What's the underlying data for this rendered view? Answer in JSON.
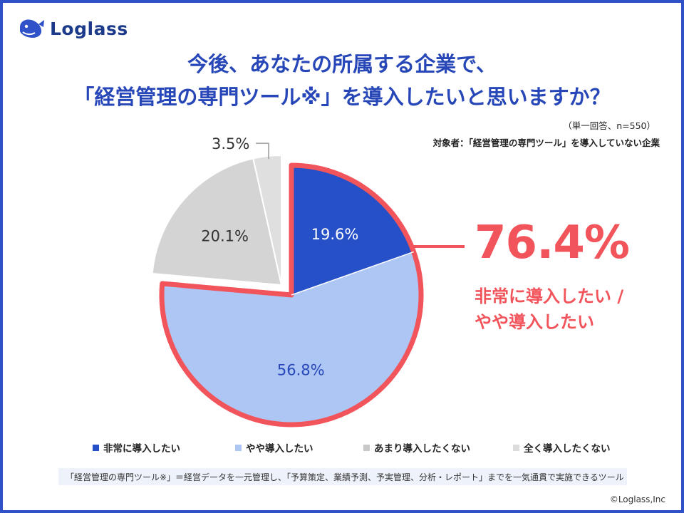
{
  "brand": {
    "name": "Loglass",
    "logo_icon": "whale-logo-icon"
  },
  "title": {
    "line1": "今後、あなたの所属する企業で、",
    "line2": "「経営管理の専門ツール※」を導入したいと思いますか？"
  },
  "notes": {
    "answer_type": "（単一回答、n=550）",
    "target": "対象者：「経営管理の専門ツール」を導入していない企業"
  },
  "highlight": {
    "value": "76.4%",
    "label_line1": "非常に導入したい /",
    "label_line2": "やや導入したい",
    "color": "#f2545b"
  },
  "chart_data": {
    "type": "pie",
    "start_angle_deg": 0,
    "direction": "clockwise",
    "exploded_index": [
      0,
      1
    ],
    "slices": [
      {
        "label": "非常に導入したい",
        "value": 19.6,
        "display": "19.6%",
        "color": "#2650c8",
        "text_color": "#ffffff"
      },
      {
        "label": "やや導入したい",
        "value": 56.8,
        "display": "56.8%",
        "color": "#adc6f4",
        "text_color": "#2747b8"
      },
      {
        "label": "あまり導入したくない",
        "value": 20.1,
        "display": "20.1%",
        "color": "#d4d4d4",
        "text_color": "#333333"
      },
      {
        "label": "全く導入したくない",
        "value": 3.5,
        "display": "3.5%",
        "color": "#dfdfdf",
        "text_color": "#333333"
      }
    ],
    "legend_position": "bottom"
  },
  "footnote": "「経営管理の専門ツール※」＝経営データを一元管理し、「予算策定、業績予測、予実管理、分析・レポート」までを一気通貫で実施できるツール",
  "copyright": "©Loglass,Inc"
}
